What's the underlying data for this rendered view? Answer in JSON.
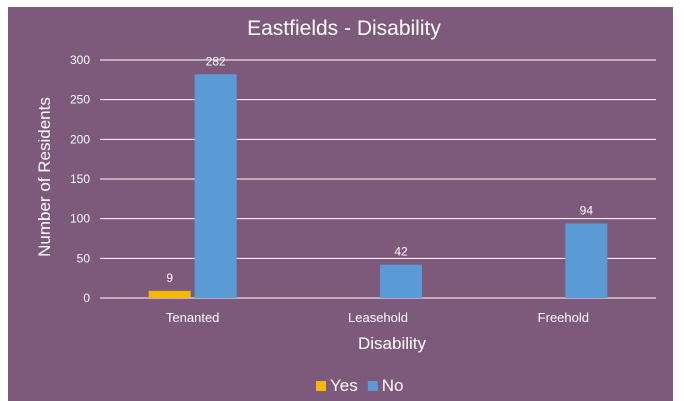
{
  "chart_data": {
    "type": "bar",
    "title": "Eastfields - Disability",
    "xlabel": "Disability",
    "ylabel": "Number of Residents",
    "categories": [
      "Tenanted",
      "Leasehold",
      "Freehold"
    ],
    "series": [
      {
        "name": "Yes",
        "color": "#f5b800",
        "values": [
          9,
          null,
          null
        ]
      },
      {
        "name": "No",
        "color": "#5b9bd5",
        "values": [
          282,
          42,
          94
        ]
      }
    ],
    "ylim": [
      0,
      300
    ],
    "yticks": [
      0,
      50,
      100,
      150,
      200,
      250,
      300
    ],
    "grid": true,
    "legend": "bottom",
    "background": "#7d5a7b",
    "gridline_color": "#ffffff"
  }
}
